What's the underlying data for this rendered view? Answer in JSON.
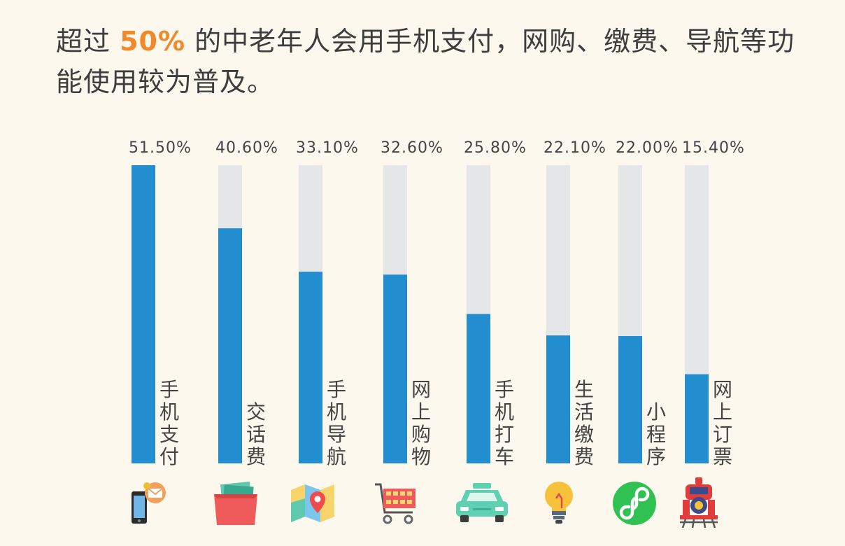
{
  "heading": {
    "prefix": "超过",
    "highlight": "50%",
    "suffix": "的中老年人会用手机支付，网购、缴费、导航等功能使用较为普及。"
  },
  "colors": {
    "bar": "#238ecf",
    "track": "#e5e6e8",
    "highlight": "#f0892a",
    "text": "#444444"
  },
  "chart_data": {
    "type": "bar",
    "categories": [
      "手机支付",
      "交话费",
      "手机导航",
      "网上购物",
      "手机打车",
      "生活缴费",
      "小程序",
      "网上订票"
    ],
    "values": [
      51.5,
      40.6,
      33.1,
      32.6,
      25.8,
      22.1,
      22.0,
      15.4
    ],
    "value_labels": [
      "51.50%",
      "40.60%",
      "33.10%",
      "32.60%",
      "25.80%",
      "22.10%",
      "22.00%",
      "15.40%"
    ],
    "category_icons": [
      "phone-message-icon",
      "money-bag-icon",
      "map-pin-icon",
      "shopping-cart-icon",
      "taxi-icon",
      "lightbulb-icon",
      "mini-program-icon",
      "train-icon"
    ],
    "ylim": [
      0,
      51.5
    ],
    "grid": false,
    "legend": "none"
  }
}
